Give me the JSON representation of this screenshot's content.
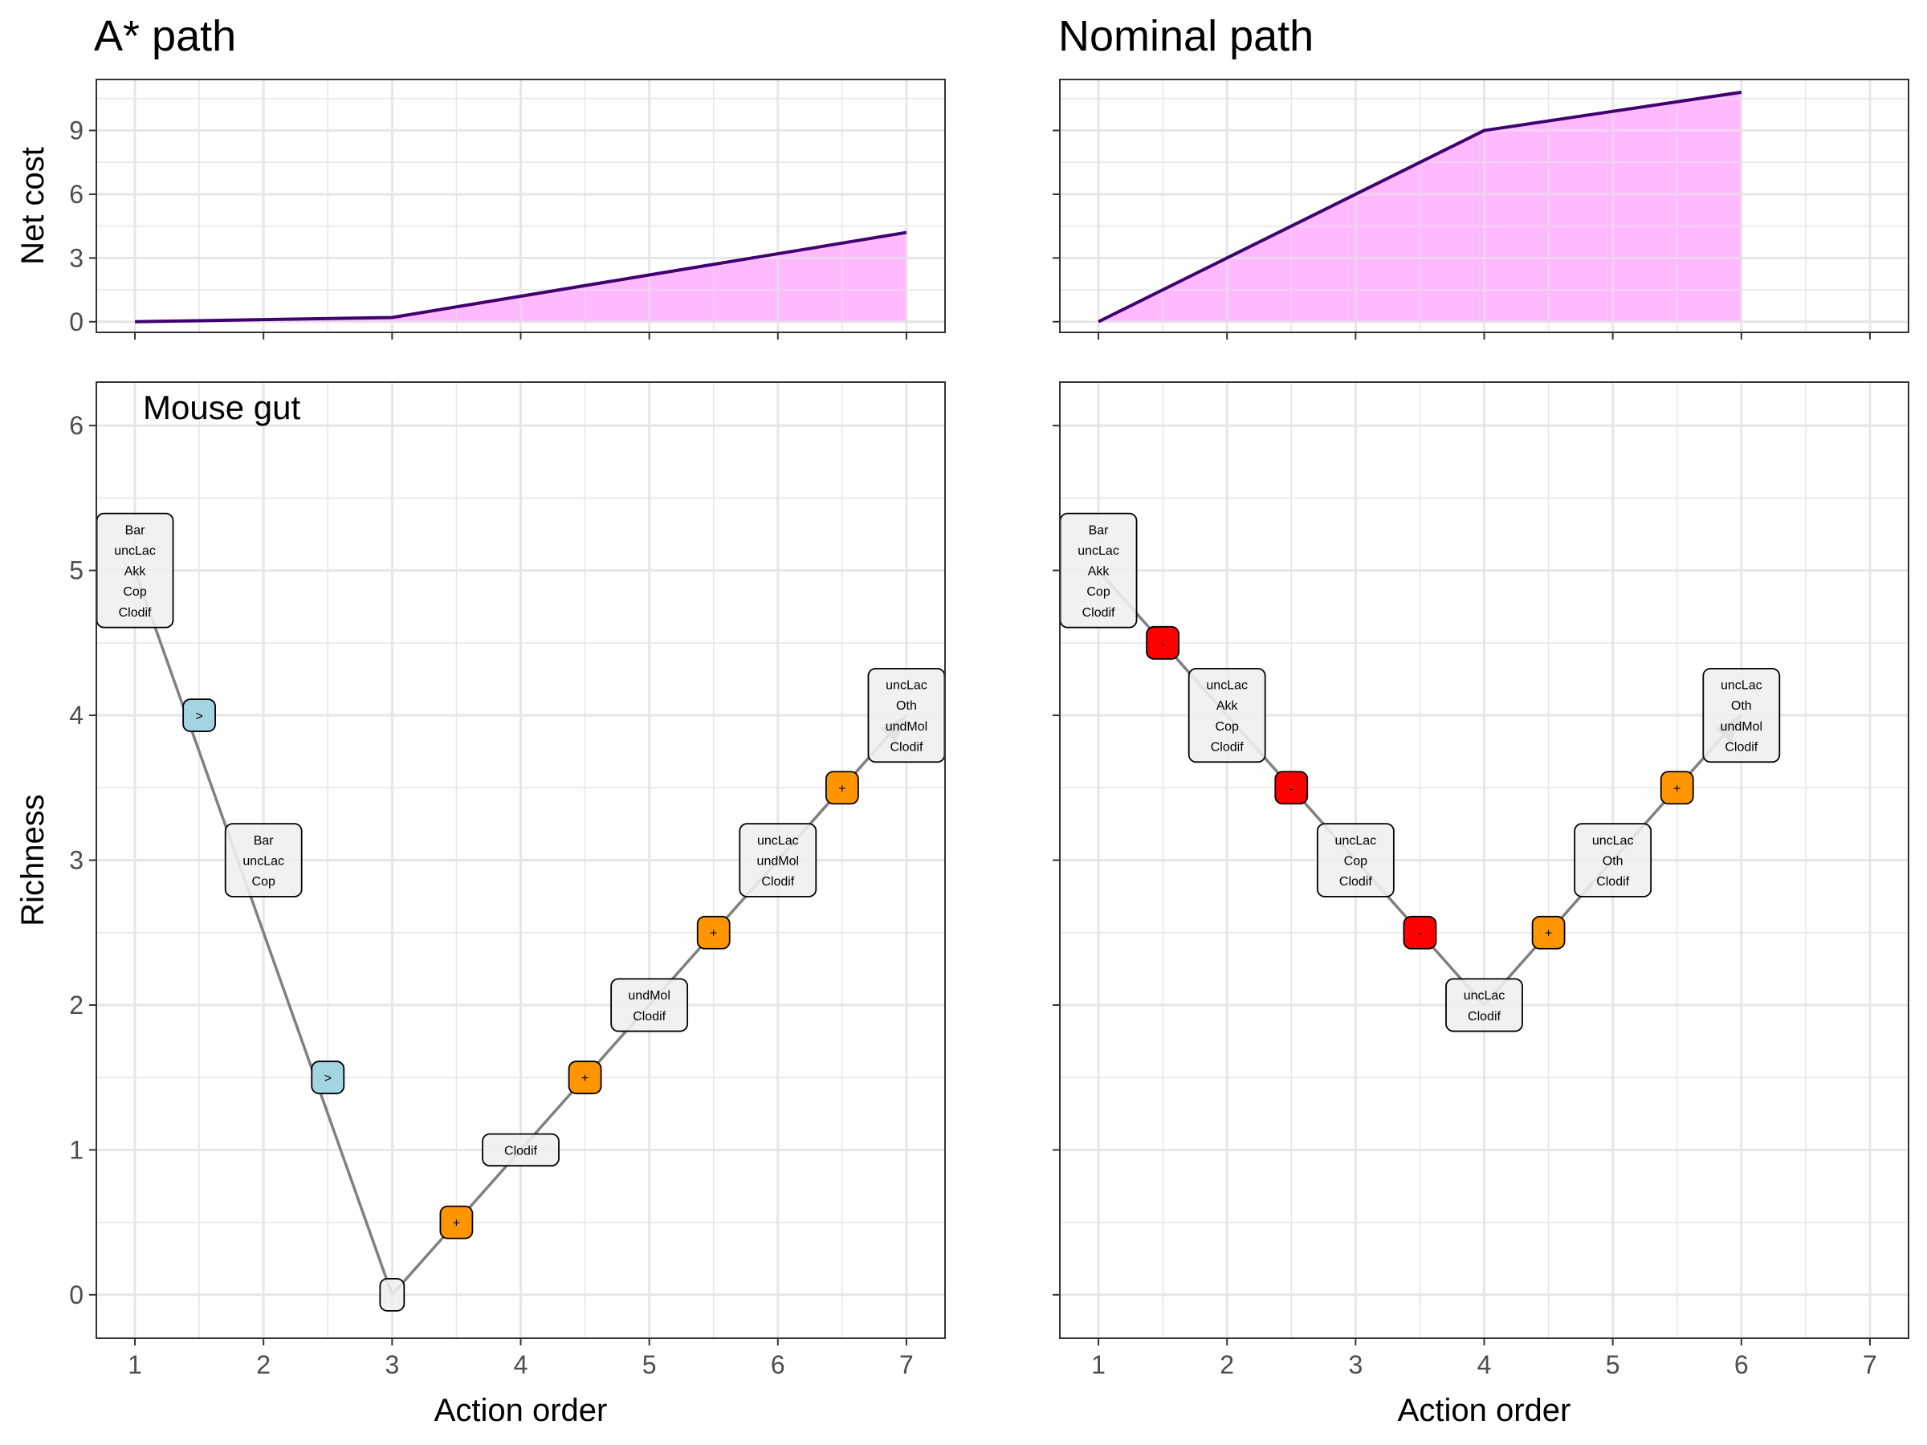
{
  "titles": {
    "left": "A* path",
    "right": "Nominal path"
  },
  "annotation": "Mouse gut",
  "chart_data": {
    "type": "line",
    "panels": [
      {
        "title": "A* path",
        "net_cost": {
          "x": [
            1,
            2,
            3,
            4,
            5,
            6,
            7
          ],
          "y": [
            0,
            0.1,
            0.2,
            1.2,
            2.2,
            3.2,
            4.2
          ]
        },
        "richness_path": [
          [
            1,
            5
          ],
          [
            3,
            0
          ],
          [
            7,
            4
          ]
        ],
        "nodes": [
          {
            "x": 1,
            "y": 5,
            "labels": [
              "Bar",
              "uncLac",
              "Akk",
              "Cop",
              "Clodif"
            ],
            "kind": "state"
          },
          {
            "x": 1.5,
            "y": 4,
            "labels": [
              ">"
            ],
            "kind": "transplant"
          },
          {
            "x": 2,
            "y": 3,
            "labels": [
              "Bar",
              "uncLac",
              "Cop"
            ],
            "kind": "state"
          },
          {
            "x": 2.5,
            "y": 1.5,
            "labels": [
              ">"
            ],
            "kind": "transplant"
          },
          {
            "x": 3,
            "y": 0,
            "labels": [
              ""
            ],
            "kind": "state"
          },
          {
            "x": 3.5,
            "y": 0.5,
            "labels": [
              "+"
            ],
            "kind": "add"
          },
          {
            "x": 4,
            "y": 1,
            "labels": [
              "Clodif"
            ],
            "kind": "state"
          },
          {
            "x": 4.5,
            "y": 1.5,
            "labels": [
              "+"
            ],
            "kind": "add"
          },
          {
            "x": 5,
            "y": 2,
            "labels": [
              "undMol",
              "Clodif"
            ],
            "kind": "state"
          },
          {
            "x": 5.5,
            "y": 2.5,
            "labels": [
              "+"
            ],
            "kind": "add"
          },
          {
            "x": 6,
            "y": 3,
            "labels": [
              "uncLac",
              "undMol",
              "Clodif"
            ],
            "kind": "state"
          },
          {
            "x": 6.5,
            "y": 3.5,
            "labels": [
              "+"
            ],
            "kind": "add"
          },
          {
            "x": 7,
            "y": 4,
            "labels": [
              "uncLac",
              "Oth",
              "undMol",
              "Clodif"
            ],
            "kind": "state"
          }
        ]
      },
      {
        "title": "Nominal path",
        "net_cost": {
          "x": [
            1,
            2,
            3,
            4,
            5,
            6
          ],
          "y": [
            0,
            3,
            6,
            9,
            9.9,
            10.8
          ]
        },
        "richness_path": [
          [
            1,
            5
          ],
          [
            4,
            2
          ],
          [
            6,
            4
          ]
        ],
        "nodes": [
          {
            "x": 1,
            "y": 5,
            "labels": [
              "Bar",
              "uncLac",
              "Akk",
              "Cop",
              "Clodif"
            ],
            "kind": "state"
          },
          {
            "x": 1.5,
            "y": 4.5,
            "labels": [
              "-"
            ],
            "kind": "remove"
          },
          {
            "x": 2,
            "y": 4,
            "labels": [
              "uncLac",
              "Akk",
              "Cop",
              "Clodif"
            ],
            "kind": "state"
          },
          {
            "x": 2.5,
            "y": 3.5,
            "labels": [
              "-"
            ],
            "kind": "remove"
          },
          {
            "x": 3,
            "y": 3,
            "labels": [
              "uncLac",
              "Cop",
              "Clodif"
            ],
            "kind": "state"
          },
          {
            "x": 3.5,
            "y": 2.5,
            "labels": [
              "-"
            ],
            "kind": "remove"
          },
          {
            "x": 4,
            "y": 2,
            "labels": [
              "uncLac",
              "Clodif"
            ],
            "kind": "state"
          },
          {
            "x": 4.5,
            "y": 2.5,
            "labels": [
              "+"
            ],
            "kind": "add"
          },
          {
            "x": 5,
            "y": 3,
            "labels": [
              "uncLac",
              "Oth",
              "Clodif"
            ],
            "kind": "state"
          },
          {
            "x": 5.5,
            "y": 3.5,
            "labels": [
              "+"
            ],
            "kind": "add"
          },
          {
            "x": 6,
            "y": 4,
            "labels": [
              "uncLac",
              "Oth",
              "undMol",
              "Clodif"
            ],
            "kind": "state"
          }
        ]
      }
    ],
    "axes": {
      "x": {
        "label": "Action order",
        "lim": [
          0.7,
          7.3
        ],
        "ticks": [
          1,
          2,
          3,
          4,
          5,
          6,
          7
        ]
      },
      "net_cost": {
        "label": "Net cost",
        "lim": [
          -0.5,
          11.4
        ],
        "ticks": [
          0,
          3,
          6,
          9
        ]
      },
      "richness": {
        "label": "Richness",
        "lim": [
          -0.3,
          6.3
        ],
        "ticks": [
          0,
          1,
          2,
          3,
          4,
          5,
          6
        ]
      }
    },
    "colors": {
      "cost_line": "#3f0071",
      "cost_fill": "#ffbbff",
      "path_line": "#808080",
      "state_fill": "#efefef",
      "transplant_fill": "#a4d3e1",
      "add_fill": "#ff9500",
      "remove_fill": "#ff0000",
      "grid": "#e6e6e6"
    },
    "grid": true,
    "legend": "none"
  }
}
